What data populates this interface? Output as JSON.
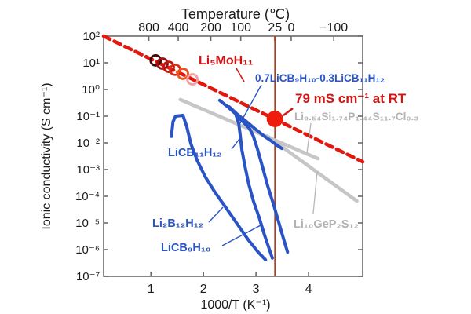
{
  "figure": {
    "top_axis_title": "Temperature (℃)",
    "xlabel": "1000/T (K⁻¹)",
    "ylabel": "Ionic conductivity (S cm⁻¹)"
  },
  "annotations": {
    "li5moh11": "Li₅MoH₁₁",
    "rt_value": "79 mS cm⁻¹ at RT",
    "solid_solution": "0.7LiCB₉H₁₀-0.3LiCB₁₁H₁₂",
    "lgps_cl": "Li₉.₅₄Si₁.₇₄P₁.₄₄S₁₁.₇Cl₀.₃",
    "lgps": "Li₁₀GeP₂S₁₂",
    "licb11h12": "LiCB₁₁H₁₂",
    "li2b12h12": "Li₂B₁₂H₁₂",
    "licb9h10": "LiCB₉H₁₀"
  },
  "colors": {
    "red_line": "#e3170d",
    "red_label": "#d21414",
    "blue": "#2a54c5",
    "gray_line": "#c6c6c8",
    "gray_label": "#b2b2b4",
    "rt_vertical_line": "#a84325",
    "rt_tick_orange": "#e8611c",
    "axis": "#6a6a6a",
    "rt_dot": "#ee1c0c"
  },
  "chart_data": {
    "type": "line",
    "title": "Temperature (℃)",
    "xlabel": "1000/T (K⁻¹)",
    "ylabel": "Ionic conductivity (S cm⁻¹)",
    "x_range": [
      0.1,
      5.03
    ],
    "y_log_range": [
      -7,
      2
    ],
    "grid": false,
    "x_ticks": [
      {
        "label": "1",
        "x": 1
      },
      {
        "label": "2",
        "x": 2
      },
      {
        "label": "3",
        "x": 3
      },
      {
        "label": "4",
        "x": 4
      }
    ],
    "y_ticks": [
      {
        "label": "10²",
        "log": 2
      },
      {
        "label": "10¹",
        "log": 1
      },
      {
        "label": "10⁰",
        "log": 0
      },
      {
        "label": "10⁻¹",
        "log": -1
      },
      {
        "label": "10⁻²",
        "log": -2
      },
      {
        "label": "10⁻³",
        "log": -3
      },
      {
        "label": "10⁻⁴",
        "log": -4
      },
      {
        "label": "10⁻⁵",
        "log": -5
      },
      {
        "label": "10⁻⁶",
        "log": -6
      },
      {
        "label": "10⁻⁷",
        "log": -7
      }
    ],
    "top_temperature_ticks": [
      {
        "label": "800",
        "x": 0.96
      },
      {
        "label": "400",
        "x": 1.52
      },
      {
        "label": "200",
        "x": 2.14
      },
      {
        "label": "100",
        "x": 2.71
      },
      {
        "label": "25",
        "x": 3.36,
        "highlight": true
      },
      {
        "label": "0",
        "x": 3.67
      },
      {
        "label": "−100",
        "x": 4.48
      }
    ],
    "series": [
      {
        "key": "lgps_cl",
        "name": "Li₉.₅₄Si₁.₇₄P₁.₄₄S₁₁.₇Cl₀.₃",
        "type": "line",
        "color": "#c6c6c8",
        "width": 4.5,
        "points": [
          [
            1.56,
            -0.38
          ],
          [
            4.18,
            -2.59
          ]
        ]
      },
      {
        "key": "lgps",
        "name": "Li₁₀GeP₂S₁₂",
        "type": "line",
        "color": "#c6c6c8",
        "width": 4.5,
        "points": [
          [
            3.21,
            -1.74
          ],
          [
            4.92,
            -4.18
          ]
        ]
      },
      {
        "key": "li5moh11_extrapolation",
        "name": "Li₅MoH₁₁",
        "type": "dashed-line",
        "color": "#e3170d",
        "width": 4.5,
        "dash": "9 6",
        "points": [
          [
            0.1,
            2.0
          ],
          [
            5.03,
            -2.71
          ]
        ]
      },
      {
        "key": "li2b12h12",
        "name": "Li₂B₁₂H₁₂",
        "type": "line",
        "color": "#2a54c5",
        "width": 4,
        "points": [
          [
            1.39,
            -1.76
          ],
          [
            1.42,
            -1.21
          ],
          [
            1.47,
            -1.0
          ],
          [
            1.61,
            -0.97
          ],
          [
            1.68,
            -1.38
          ],
          [
            1.76,
            -2.03
          ],
          [
            1.88,
            -2.65
          ],
          [
            2.03,
            -3.26
          ],
          [
            2.21,
            -3.82
          ],
          [
            2.42,
            -4.41
          ],
          [
            2.64,
            -5.03
          ],
          [
            2.86,
            -5.65
          ],
          [
            3.04,
            -6.09
          ],
          [
            3.18,
            -6.38
          ]
        ]
      },
      {
        "key": "licb11h12",
        "name": "LiCB₁₁H₁₂",
        "type": "line",
        "color": "#2a54c5",
        "width": 4,
        "points": [
          [
            2.31,
            -0.41
          ],
          [
            2.48,
            -0.68
          ],
          [
            2.61,
            -0.91
          ],
          [
            2.67,
            -1.26
          ],
          [
            2.7,
            -1.71
          ],
          [
            2.73,
            -2.24
          ],
          [
            2.79,
            -2.88
          ],
          [
            2.86,
            -3.53
          ],
          [
            2.95,
            -4.18
          ],
          [
            3.06,
            -4.79
          ],
          [
            3.16,
            -5.44
          ],
          [
            3.25,
            -5.97
          ],
          [
            3.31,
            -6.32
          ]
        ]
      },
      {
        "key": "licb9h10",
        "name": "LiCB₉H₁₀",
        "type": "line",
        "color": "#2a54c5",
        "width": 4,
        "points": [
          [
            2.65,
            -1.03
          ],
          [
            2.77,
            -1.24
          ],
          [
            2.88,
            -1.47
          ],
          [
            2.95,
            -1.76
          ],
          [
            3.03,
            -2.24
          ],
          [
            3.12,
            -2.88
          ],
          [
            3.22,
            -3.59
          ],
          [
            3.34,
            -4.35
          ],
          [
            3.45,
            -5.09
          ],
          [
            3.54,
            -5.71
          ],
          [
            3.6,
            -6.09
          ]
        ]
      },
      {
        "key": "solid_solution",
        "name": "0.7LiCB₉H₁₀-0.3LiCB₁₁H₁₂",
        "type": "line",
        "color": "#2a54c5",
        "width": 4,
        "points": [
          [
            2.49,
            -0.65
          ],
          [
            2.65,
            -0.94
          ],
          [
            2.82,
            -1.21
          ],
          [
            2.98,
            -1.47
          ],
          [
            3.15,
            -1.74
          ],
          [
            3.3,
            -1.94
          ],
          [
            3.4,
            -2.09
          ],
          [
            3.49,
            -2.21
          ]
        ]
      }
    ],
    "li5moh11_measured_points": {
      "radius": 6.5,
      "stroke_width": 2.8,
      "colors": [
        "#400a0a",
        "#9e0e0e",
        "#c41410",
        "#d92c12",
        "#e8541e",
        "#f0a0a0"
      ],
      "points": [
        [
          1.09,
          1.09
        ],
        [
          1.22,
          0.97
        ],
        [
          1.34,
          0.85
        ],
        [
          1.46,
          0.74
        ],
        [
          1.61,
          0.59
        ],
        [
          1.79,
          0.38
        ]
      ]
    },
    "rt_point": {
      "x": 3.36,
      "log_sigma": -1.1,
      "radius": 10.5,
      "color": "#ee1c0c",
      "label": "79 mS cm⁻¹ at RT"
    },
    "rt_vertical_line": {
      "x": 3.36,
      "color": "#a84325"
    }
  }
}
